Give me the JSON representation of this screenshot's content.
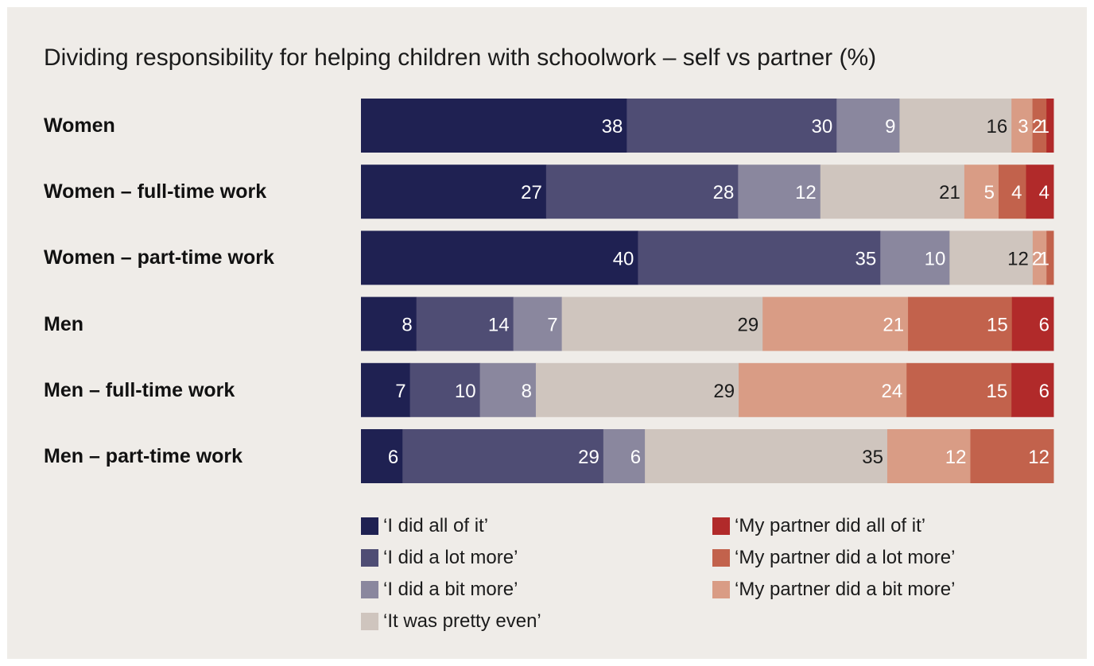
{
  "chart_data": {
    "type": "bar",
    "orientation": "horizontal",
    "stacked": true,
    "title": "Dividing responsibility for helping children with schoolwork – self vs partner (%)",
    "xlim": [
      0,
      100
    ],
    "grid": false,
    "legend_position": "bottom",
    "categories": [
      "Women",
      "Women – full-time work",
      "Women – part-time work",
      "Men",
      "Men – full-time work",
      "Men – part-time work"
    ],
    "series": [
      {
        "name": "‘I did all of it’",
        "color": "#1f2152",
        "label_color": "#ffffff",
        "values": [
          38,
          27,
          40,
          8,
          7,
          6
        ]
      },
      {
        "name": "‘I did a lot more’",
        "color": "#4f4d74",
        "label_color": "#ffffff",
        "values": [
          30,
          28,
          35,
          14,
          10,
          29
        ]
      },
      {
        "name": "‘I did a bit more’",
        "color": "#8a879e",
        "label_color": "#ffffff",
        "values": [
          9,
          12,
          10,
          7,
          8,
          6
        ]
      },
      {
        "name": "‘It was pretty even’",
        "color": "#cfc5be",
        "label_color": "#1b1b1b",
        "values": [
          16,
          21,
          12,
          29,
          29,
          35
        ]
      },
      {
        "name": "‘My partner did a bit more’",
        "color": "#d99c85",
        "label_color": "#ffffff",
        "values": [
          3,
          5,
          2,
          21,
          24,
          12
        ]
      },
      {
        "name": "‘My partner did a lot more’",
        "color": "#c2624c",
        "label_color": "#ffffff",
        "values": [
          2,
          4,
          1,
          15,
          15,
          12
        ]
      },
      {
        "name": "‘My partner did all of it’",
        "color": "#b12a2a",
        "label_color": "#ffffff",
        "values": [
          1,
          4,
          0,
          6,
          6,
          0
        ]
      }
    ]
  }
}
